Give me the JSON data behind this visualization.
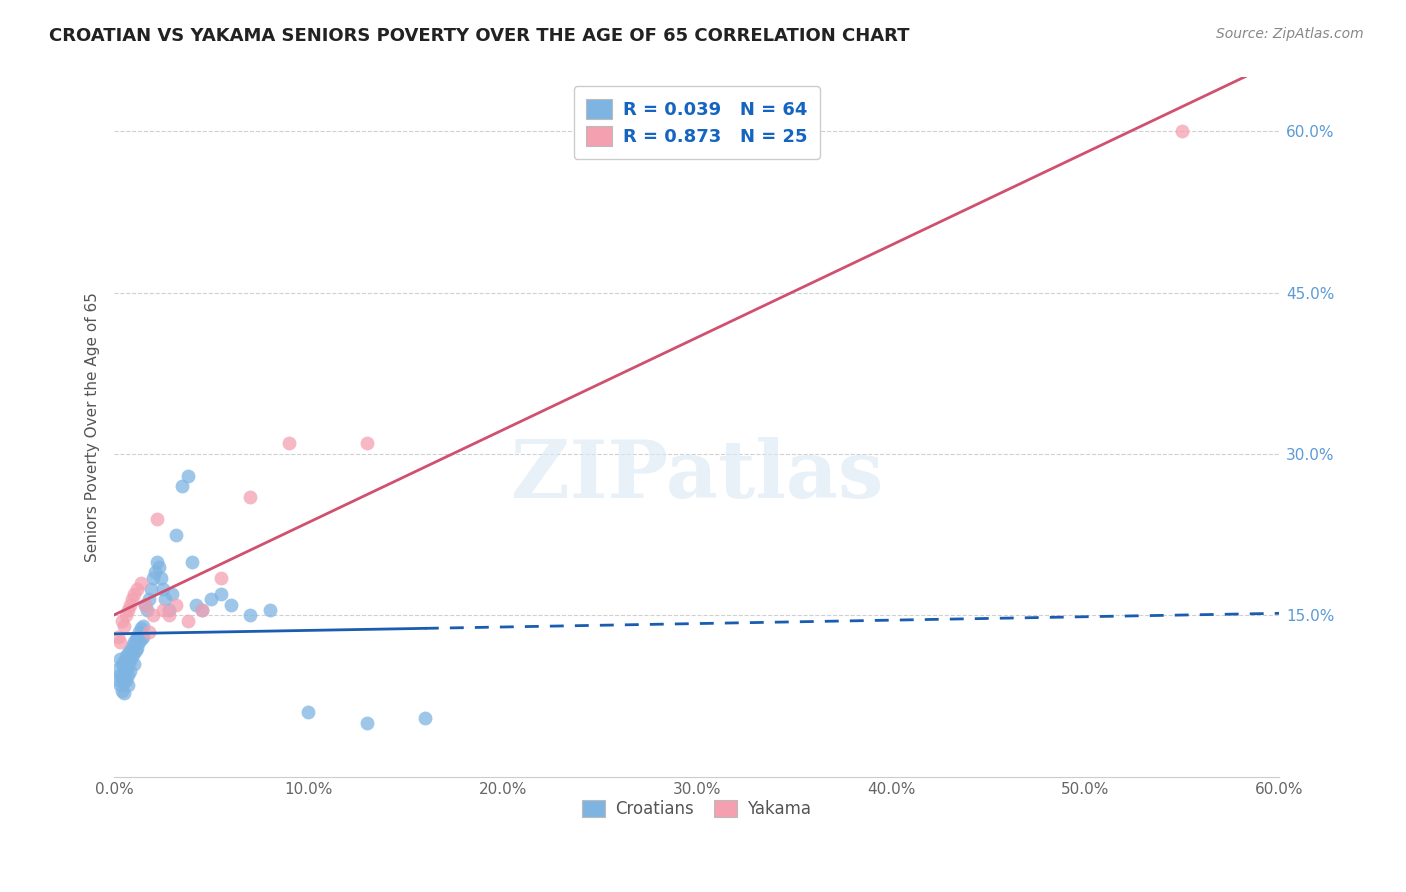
{
  "title": "CROATIAN VS YAKAMA SENIORS POVERTY OVER THE AGE OF 65 CORRELATION CHART",
  "source": "Source: ZipAtlas.com",
  "ylabel": "Seniors Poverty Over the Age of 65",
  "xlim": [
    0.0,
    0.6
  ],
  "ylim": [
    0.0,
    0.65
  ],
  "xticks": [
    0.0,
    0.1,
    0.2,
    0.3,
    0.4,
    0.5,
    0.6
  ],
  "xtick_labels": [
    "0.0%",
    "10.0%",
    "20.0%",
    "30.0%",
    "40.0%",
    "50.0%",
    "60.0%"
  ],
  "yticks": [
    0.15,
    0.3,
    0.45,
    0.6
  ],
  "ytick_labels": [
    "15.0%",
    "30.0%",
    "45.0%",
    "60.0%"
  ],
  "background_color": "#ffffff",
  "grid_color": "#d0d0d0",
  "croatian_color": "#7EB4E2",
  "yakama_color": "#F4A0B0",
  "croatian_line_color": "#1A5CB0",
  "yakama_line_color": "#D05070",
  "croatian_R": 0.039,
  "croatian_N": 64,
  "yakama_R": 0.873,
  "yakama_N": 25,
  "legend_text_color": "#1565C0",
  "watermark": "ZIPatlas",
  "croatian_x": [
    0.002,
    0.002,
    0.003,
    0.003,
    0.003,
    0.004,
    0.004,
    0.004,
    0.005,
    0.005,
    0.005,
    0.005,
    0.006,
    0.006,
    0.006,
    0.007,
    0.007,
    0.007,
    0.007,
    0.008,
    0.008,
    0.008,
    0.009,
    0.009,
    0.01,
    0.01,
    0.01,
    0.011,
    0.011,
    0.012,
    0.012,
    0.013,
    0.013,
    0.014,
    0.014,
    0.015,
    0.015,
    0.016,
    0.017,
    0.018,
    0.019,
    0.02,
    0.021,
    0.022,
    0.023,
    0.024,
    0.025,
    0.026,
    0.028,
    0.03,
    0.032,
    0.035,
    0.038,
    0.04,
    0.042,
    0.045,
    0.05,
    0.055,
    0.06,
    0.07,
    0.08,
    0.1,
    0.13,
    0.16
  ],
  "croatian_y": [
    0.1,
    0.09,
    0.11,
    0.095,
    0.085,
    0.105,
    0.092,
    0.08,
    0.108,
    0.098,
    0.088,
    0.078,
    0.112,
    0.1,
    0.09,
    0.115,
    0.105,
    0.095,
    0.085,
    0.118,
    0.108,
    0.098,
    0.122,
    0.112,
    0.125,
    0.115,
    0.105,
    0.128,
    0.118,
    0.13,
    0.12,
    0.135,
    0.125,
    0.138,
    0.128,
    0.14,
    0.13,
    0.16,
    0.155,
    0.165,
    0.175,
    0.185,
    0.19,
    0.2,
    0.195,
    0.185,
    0.175,
    0.165,
    0.155,
    0.17,
    0.225,
    0.27,
    0.28,
    0.2,
    0.16,
    0.155,
    0.165,
    0.17,
    0.16,
    0.15,
    0.155,
    0.06,
    0.05,
    0.055
  ],
  "yakama_x": [
    0.002,
    0.003,
    0.004,
    0.005,
    0.006,
    0.007,
    0.008,
    0.009,
    0.01,
    0.012,
    0.014,
    0.016,
    0.018,
    0.02,
    0.022,
    0.025,
    0.028,
    0.032,
    0.038,
    0.045,
    0.055,
    0.07,
    0.09,
    0.13,
    0.55
  ],
  "yakama_y": [
    0.13,
    0.125,
    0.145,
    0.14,
    0.15,
    0.155,
    0.16,
    0.165,
    0.17,
    0.175,
    0.18,
    0.16,
    0.135,
    0.15,
    0.24,
    0.155,
    0.15,
    0.16,
    0.145,
    0.155,
    0.185,
    0.26,
    0.31,
    0.31,
    0.6
  ]
}
